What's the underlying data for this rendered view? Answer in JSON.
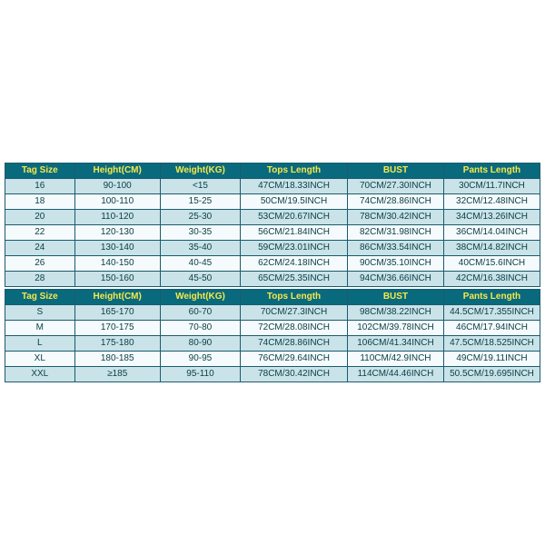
{
  "colors": {
    "header_bg": "#0a6a7d",
    "header_text": "#f7e94a",
    "row_odd_bg": "#c9e3e8",
    "row_even_bg": "#f5fbfc",
    "row_text": "#0a3d45",
    "border": "#1a5b6e",
    "page_bg": "#ffffff"
  },
  "typography": {
    "font_family": "Arial, sans-serif",
    "cell_fontsize_pt": 8,
    "header_fontsize_pt": 8,
    "header_weight": "bold"
  },
  "table1": {
    "type": "table",
    "columns": [
      "Tag Size",
      "Height(CM)",
      "Weight(KG)",
      "Tops Length",
      "BUST",
      "Pants Length"
    ],
    "col_widths_pct": [
      13,
      16,
      15,
      20,
      18,
      18
    ],
    "rows": [
      [
        "16",
        "90-100",
        "<15",
        "47CM/18.33INCH",
        "70CM/27.30INCH",
        "30CM/11.7INCH"
      ],
      [
        "18",
        "100-110",
        "15-25",
        "50CM/19.5INCH",
        "74CM/28.86INCH",
        "32CM/12.48INCH"
      ],
      [
        "20",
        "110-120",
        "25-30",
        "53CM/20.67INCH",
        "78CM/30.42INCH",
        "34CM/13.26INCH"
      ],
      [
        "22",
        "120-130",
        "30-35",
        "56CM/21.84INCH",
        "82CM/31.98INCH",
        "36CM/14.04INCH"
      ],
      [
        "24",
        "130-140",
        "35-40",
        "59CM/23.01INCH",
        "86CM/33.54INCH",
        "38CM/14.82INCH"
      ],
      [
        "26",
        "140-150",
        "40-45",
        "62CM/24.18INCH",
        "90CM/35.10INCH",
        "40CM/15.6INCH"
      ],
      [
        "28",
        "150-160",
        "45-50",
        "65CM/25.35INCH",
        "94CM/36.66INCH",
        "42CM/16.38INCH"
      ]
    ]
  },
  "table2": {
    "type": "table",
    "columns": [
      "Tag Size",
      "Height(CM)",
      "Weight(KG)",
      "Tops Length",
      "BUST",
      "Pants Length"
    ],
    "col_widths_pct": [
      13,
      16,
      15,
      20,
      18,
      18
    ],
    "rows": [
      [
        "S",
        "165-170",
        "60-70",
        "70CM/27.3INCH",
        "98CM/38.22INCH",
        "44.5CM/17.355INCH"
      ],
      [
        "M",
        "170-175",
        "70-80",
        "72CM/28.08INCH",
        "102CM/39.78INCH",
        "46CM/17.94INCH"
      ],
      [
        "L",
        "175-180",
        "80-90",
        "74CM/28.86INCH",
        "106CM/41.34INCH",
        "47.5CM/18.525INCH"
      ],
      [
        "XL",
        "180-185",
        "90-95",
        "76CM/29.64INCH",
        "110CM/42.9INCH",
        "49CM/19.11INCH"
      ],
      [
        "XXL",
        "≥185",
        "95-110",
        "78CM/30.42INCH",
        "114CM/44.46INCH",
        "50.5CM/19.695INCH"
      ]
    ]
  }
}
